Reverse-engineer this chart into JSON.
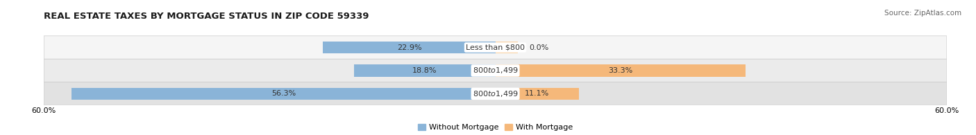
{
  "title": "REAL ESTATE TAXES BY MORTGAGE STATUS IN ZIP CODE 59339",
  "source": "Source: ZipAtlas.com",
  "categories": [
    "Less than $800",
    "$800 to $1,499",
    "$800 to $1,499"
  ],
  "without_mortgage": [
    22.9,
    18.8,
    56.3
  ],
  "with_mortgage": [
    0.0,
    33.3,
    11.1
  ],
  "without_color": "#8ab4d8",
  "with_color": "#f5b87a",
  "with_color_light": "#f9d4a8",
  "row_bg_colors": [
    "#f5f5f5",
    "#ebebeb",
    "#e2e2e2"
  ],
  "row_border_color": "#cccccc",
  "xlim": [
    -60,
    60
  ],
  "title_fontsize": 9.5,
  "source_fontsize": 7.5,
  "label_fontsize": 8.0,
  "cat_fontsize": 8.0,
  "bar_height": 0.52,
  "figsize": [
    14.06,
    1.95
  ],
  "dpi": 100
}
